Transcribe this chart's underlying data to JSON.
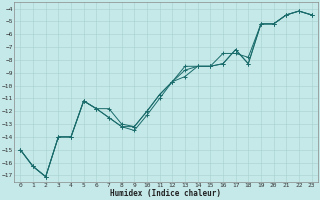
{
  "xlabel": "Humidex (Indice chaleur)",
  "bg_color": "#c5e8e8",
  "grid_color": "#aacfcf",
  "line_color": "#1a6b6b",
  "xlim": [
    -0.5,
    23.5
  ],
  "ylim": [
    -17.5,
    -3.5
  ],
  "yticks": [
    -4,
    -5,
    -6,
    -7,
    -8,
    -9,
    -10,
    -11,
    -12,
    -13,
    -14,
    -15,
    -16,
    -17
  ],
  "xticks": [
    0,
    1,
    2,
    3,
    4,
    5,
    6,
    7,
    8,
    9,
    10,
    11,
    12,
    13,
    14,
    15,
    16,
    17,
    18,
    19,
    20,
    21,
    22,
    23
  ],
  "line1_x": [
    0,
    1,
    2,
    3,
    4,
    5,
    6,
    7,
    8,
    9,
    10,
    11,
    12,
    13,
    14,
    15,
    16,
    17,
    18,
    19,
    20,
    21,
    22,
    23
  ],
  "line1_y": [
    -15.0,
    -16.3,
    -17.1,
    -14.0,
    -14.0,
    -11.2,
    -11.8,
    -11.8,
    -13.0,
    -13.2,
    -12.0,
    -10.7,
    -9.7,
    -9.3,
    -8.5,
    -8.5,
    -8.3,
    -7.2,
    -8.3,
    -5.2,
    -5.2,
    -4.5,
    -4.2,
    -4.5
  ],
  "line2_x": [
    0,
    1,
    2,
    3,
    4,
    5,
    6,
    7,
    8,
    9,
    10,
    11,
    12,
    13,
    14,
    15,
    16,
    17,
    18,
    19,
    20,
    21,
    22,
    23
  ],
  "line2_y": [
    -15.0,
    -16.3,
    -17.1,
    -14.0,
    -14.0,
    -11.2,
    -11.8,
    -12.5,
    -13.2,
    -13.2,
    -12.0,
    -10.7,
    -9.7,
    -8.5,
    -8.5,
    -8.5,
    -7.5,
    -7.5,
    -7.8,
    -5.2,
    -5.2,
    -4.5,
    -4.2,
    -4.5
  ],
  "line3_x": [
    0,
    1,
    2,
    3,
    4,
    5,
    6,
    7,
    8,
    9,
    10,
    11,
    12,
    13,
    14,
    15,
    16,
    17,
    18,
    19,
    20,
    21,
    22,
    23
  ],
  "line3_y": [
    -15.0,
    -16.3,
    -17.1,
    -14.0,
    -14.0,
    -11.2,
    -11.8,
    -12.5,
    -13.2,
    -13.5,
    -12.3,
    -11.0,
    -9.7,
    -8.8,
    -8.5,
    -8.5,
    -8.3,
    -7.2,
    -8.3,
    -5.2,
    -5.2,
    -4.5,
    -4.2,
    -4.5
  ]
}
